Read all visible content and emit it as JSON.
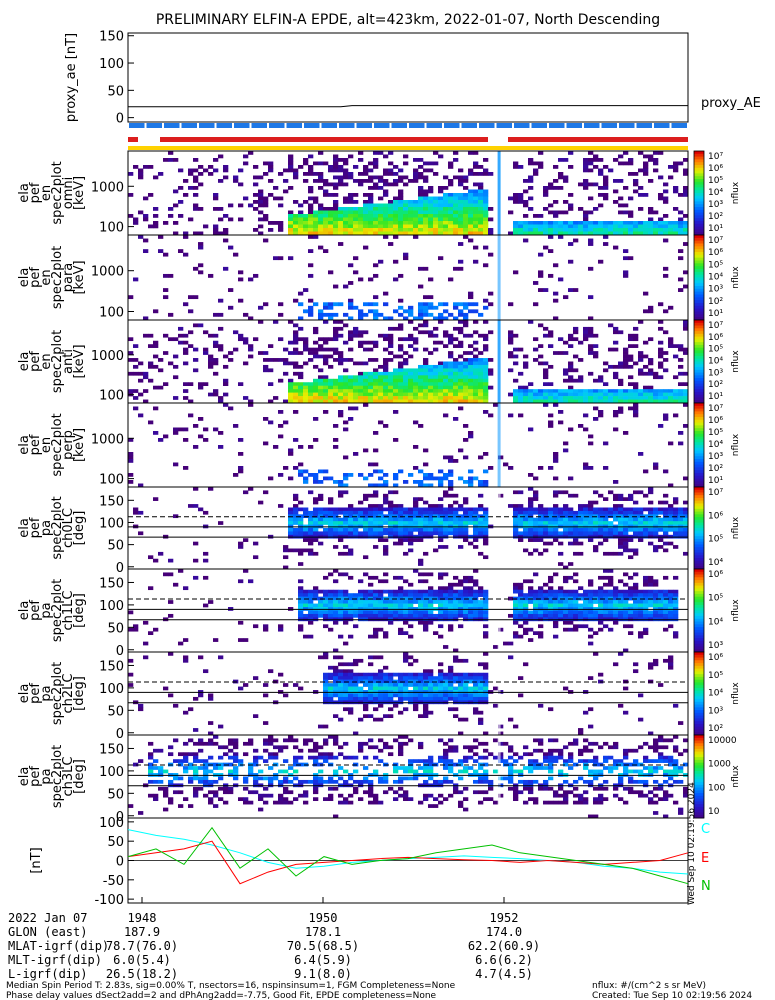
{
  "title": "PRELIMINARY ELFIN-A EPDE, alt=423km, 2022-01-07, North Descending",
  "colors": {
    "bar_blue": "#1e78e6",
    "bar_red": "#dc1e1e",
    "bar_yellow": "#ffd200",
    "bx": "#00ffff",
    "by": "#ff0000",
    "bz": "#00c000"
  },
  "chart_data": [
    {
      "type": "line",
      "panel": "proxy_ae",
      "ylabel": "proxy_ae [nT]",
      "yticks": [
        "150",
        "100",
        "50",
        "0"
      ],
      "ylim": [
        -8,
        155
      ],
      "series": [
        {
          "name": "proxy_AE",
          "x": [
            0.0,
            0.38,
            0.4,
            1.0
          ],
          "values": [
            20,
            20,
            22,
            22
          ]
        }
      ],
      "legend": "proxy_AE"
    },
    {
      "type": "heatmap",
      "panel": "ela pef en spec2plot omni",
      "ylabel_lines": [
        "ela",
        "pef",
        "en",
        "spec2plot",
        "omni",
        "[keV]"
      ],
      "yticks": [
        "1000",
        "100"
      ],
      "colorbar_ticks": [
        "10⁷",
        "10⁶",
        "10⁵",
        "10⁴",
        "10³",
        "10²",
        "10¹"
      ],
      "colorbar_label": "nflux"
    },
    {
      "type": "heatmap",
      "panel": "ela pef en spec2plot para",
      "ylabel_lines": [
        "ela",
        "pef",
        "en",
        "spec2plot",
        "para",
        "[keV]"
      ],
      "yticks": [
        "1000",
        "100"
      ],
      "colorbar_ticks": [
        "10⁷",
        "10⁶",
        "10⁵",
        "10⁴",
        "10³",
        "10²",
        "10¹"
      ],
      "colorbar_label": "nflux"
    },
    {
      "type": "heatmap",
      "panel": "ela pef en spec2plot anti",
      "ylabel_lines": [
        "ela",
        "pef",
        "en",
        "spec2plot",
        "anti",
        "[keV]"
      ],
      "yticks": [
        "1000",
        "100"
      ],
      "colorbar_ticks": [
        "10⁷",
        "10⁶",
        "10⁵",
        "10⁴",
        "10³",
        "10²",
        "10¹"
      ],
      "colorbar_label": "nflux"
    },
    {
      "type": "heatmap",
      "panel": "ela pef en spec2plot perp",
      "ylabel_lines": [
        "ela",
        "pef",
        "en",
        "spec2plot",
        "perp",
        "[keV]"
      ],
      "yticks": [
        "1000",
        "100"
      ],
      "colorbar_ticks": [
        "10⁷",
        "10⁶",
        "10⁵",
        "10⁴",
        "10³",
        "10²",
        "10¹"
      ],
      "colorbar_label": "nflux"
    },
    {
      "type": "heatmap",
      "panel": "ela pef pa spec2plot ch0LC",
      "ylabel_lines": [
        "ela",
        "pef",
        "pa",
        "spec2plot",
        "ch0LC",
        "[deg]"
      ],
      "yticks": [
        "150",
        "100",
        "50",
        "0"
      ],
      "colorbar_ticks": [
        "10⁷",
        "10⁶",
        "10⁵",
        "10⁴"
      ],
      "colorbar_label": "nflux"
    },
    {
      "type": "heatmap",
      "panel": "ela pef pa spec2plot ch1LC",
      "ylabel_lines": [
        "ela",
        "pef",
        "pa",
        "spec2plot",
        "ch1LC",
        "[deg]"
      ],
      "yticks": [
        "150",
        "100",
        "50",
        "0"
      ],
      "colorbar_ticks": [
        "10⁶",
        "10⁵",
        "10⁴",
        "10³"
      ],
      "colorbar_label": "nflux"
    },
    {
      "type": "heatmap",
      "panel": "ela pef pa spec2plot ch2LC",
      "ylabel_lines": [
        "ela",
        "pef",
        "pa",
        "spec2plot",
        "ch2LC",
        "[deg]"
      ],
      "yticks": [
        "150",
        "100",
        "50",
        "0"
      ],
      "colorbar_ticks": [
        "10⁶",
        "10⁵",
        "10⁴",
        "10³",
        "10²"
      ],
      "colorbar_label": "nflux"
    },
    {
      "type": "heatmap",
      "panel": "ela pef pa spec2plot ch3LC",
      "ylabel_lines": [
        "ela",
        "pef",
        "pa",
        "spec2plot",
        "ch3LC",
        "[deg]"
      ],
      "yticks": [
        "150",
        "100",
        "50",
        "0"
      ],
      "colorbar_ticks": [
        "10000",
        "1000",
        "100",
        "10"
      ],
      "colorbar_label": "nflux"
    },
    {
      "type": "line",
      "panel": "fgm",
      "ylabel": "[nT]",
      "yticks": [
        "100",
        "50",
        "0",
        "-50",
        "-100"
      ],
      "ylim": [
        -110,
        110
      ],
      "series": [
        {
          "name": "C",
          "x": [
            0.0,
            0.05,
            0.1,
            0.15,
            0.2,
            0.25,
            0.3,
            0.35,
            0.4,
            0.45,
            0.5,
            0.55,
            0.6,
            0.65,
            0.7,
            0.75,
            0.8,
            0.85,
            0.9,
            0.95,
            1.0
          ],
          "values": [
            80,
            65,
            55,
            40,
            20,
            -5,
            -20,
            -15,
            -5,
            0,
            5,
            8,
            12,
            8,
            5,
            0,
            -5,
            -15,
            -20,
            -30,
            -35
          ]
        },
        {
          "name": "E",
          "x": [
            0.0,
            0.05,
            0.1,
            0.15,
            0.2,
            0.25,
            0.3,
            0.35,
            0.4,
            0.45,
            0.5,
            0.55,
            0.6,
            0.65,
            0.7,
            0.75,
            0.8,
            0.85,
            0.9,
            0.95,
            1.0
          ],
          "values": [
            10,
            20,
            30,
            50,
            -60,
            -30,
            -10,
            -5,
            0,
            5,
            8,
            5,
            2,
            0,
            -5,
            0,
            -5,
            -10,
            -5,
            0,
            20
          ]
        },
        {
          "name": "N",
          "x": [
            0.0,
            0.05,
            0.1,
            0.15,
            0.2,
            0.25,
            0.3,
            0.35,
            0.4,
            0.45,
            0.5,
            0.55,
            0.6,
            0.65,
            0.7,
            0.75,
            0.8,
            0.85,
            0.9,
            0.95,
            1.0
          ],
          "values": [
            10,
            30,
            -10,
            85,
            -20,
            30,
            -40,
            10,
            -10,
            0,
            5,
            20,
            30,
            40,
            20,
            10,
            0,
            -10,
            -20,
            -40,
            -60
          ]
        }
      ],
      "legend": "right"
    }
  ],
  "side_labels": {
    "proxy": "proxy_AE",
    "c": "C",
    "e": "E",
    "n": "N"
  },
  "timestamp_vertical": "Wed Sep 10 02:19:56 2024",
  "xaxis": {
    "ticks": [
      "1948",
      "1950",
      "1952"
    ],
    "rows": [
      {
        "label": "2022 Jan 07",
        "vals": [
          "",
          "",
          ""
        ]
      },
      {
        "label": "GLON (east)",
        "vals": [
          "187.9",
          "178.1",
          "174.0"
        ]
      },
      {
        "label": "MLAT-igrf(dip)",
        "vals": [
          "78.7(76.0)",
          "70.5(68.5)",
          "62.2(60.9)"
        ]
      },
      {
        "label": "MLT-igrf(dip)",
        "vals": [
          "6.0(5.4)",
          "6.4(5.9)",
          "6.6(6.2)"
        ]
      },
      {
        "label": "L-igrf(dip)",
        "vals": [
          "26.5(18.2)",
          "9.1(8.0)",
          "4.7(4.5)"
        ]
      }
    ]
  },
  "footer": {
    "line1": "Median Spin Period T: 2.83s, sig=0.00% T, nsectors=16, nspinsinsum=1, FGM Completeness=None",
    "line2": "Phase delay values dSect2add=2 and dPhAng2add=-7.75, Good Fit, EPDE completeness=None",
    "right1": "nflux: #/(cm^2 s sr MeV)",
    "right2": "Created: Tue Sep 10 02:19:56 2024"
  }
}
